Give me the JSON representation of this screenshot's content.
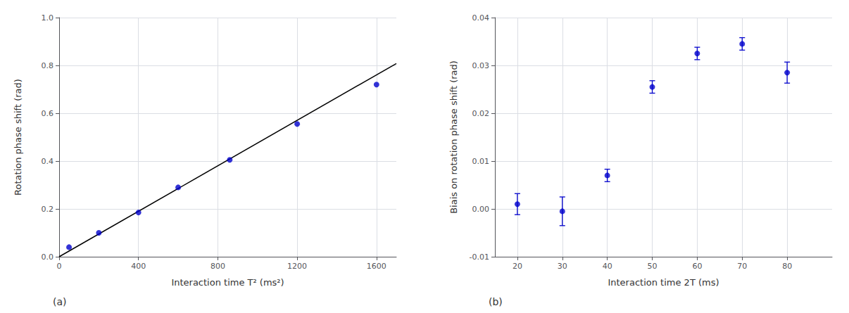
{
  "chart_data": [
    {
      "type": "scatter",
      "xlabel": "Interaction time T² (ms²)",
      "ylabel": "Rotation phase shift (rad)",
      "annotations": [
        "(a)"
      ],
      "xlim": [
        0,
        1700
      ],
      "ylim": [
        0.0,
        1.0
      ],
      "xticks": [
        0,
        400,
        800,
        1200,
        1600
      ],
      "yticks": [
        {
          "value": 0.0,
          "label": "0.0"
        },
        0.2,
        0.4,
        0.6,
        0.8,
        {
          "value": 1.0,
          "label": "1.0"
        }
      ],
      "grid": true,
      "series": [
        {
          "type": "line",
          "color": "#000000",
          "line_style": "solid",
          "x": [
            0,
            1700
          ],
          "values": [
            0.0,
            0.808
          ]
        },
        {
          "type": "scatter",
          "color": "#0000CC",
          "marker": "circle",
          "x": [
            50,
            200,
            400,
            600,
            860,
            1200,
            1600
          ],
          "values": [
            0.04,
            0.1,
            0.185,
            0.29,
            0.405,
            0.555,
            0.72
          ]
        }
      ]
    },
    {
      "type": "scatter",
      "xlabel": "Interaction time 2T (ms)",
      "ylabel": "Biais on rotation phase shift (rad)",
      "annotations": [
        "(b)"
      ],
      "xlim": [
        15,
        90
      ],
      "ylim": [
        -0.01,
        0.04
      ],
      "xticks": [
        20,
        30,
        40,
        50,
        60,
        70,
        80
      ],
      "yticks": [
        -0.01,
        {
          "value": 0.0,
          "label": "0.00"
        },
        0.01,
        0.02,
        0.03,
        0.04
      ],
      "grid": true,
      "series": [
        {
          "type": "scatter",
          "color": "#0000CC",
          "marker": "circle",
          "x": [
            20,
            30,
            40,
            50,
            60,
            70,
            80
          ],
          "values": [
            0.001,
            -0.0005,
            0.007,
            0.0255,
            0.0325,
            0.0345,
            0.0285
          ],
          "errors": [
            0.0022,
            0.003,
            0.0013,
            0.0013,
            0.0013,
            0.0013,
            0.0022
          ]
        }
      ]
    }
  ]
}
